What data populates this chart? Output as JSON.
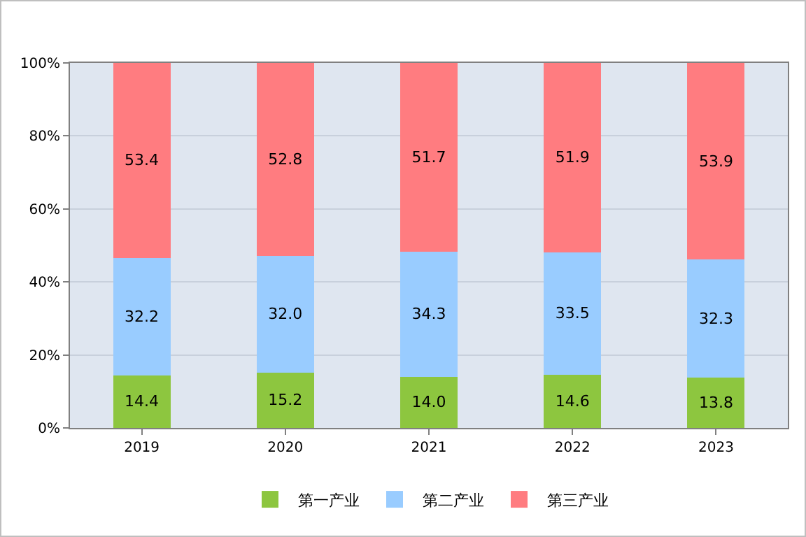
{
  "chart_data": {
    "type": "bar",
    "stacked": true,
    "categories": [
      "2019",
      "2020",
      "2021",
      "2022",
      "2023"
    ],
    "series": [
      {
        "name": "第一产业",
        "color": "#8dc63f",
        "values": [
          14.4,
          15.2,
          14.0,
          14.6,
          13.8
        ],
        "value_labels": [
          "14.4",
          "15.2",
          "14.0",
          "14.6",
          "13.8"
        ]
      },
      {
        "name": "第二产业",
        "color": "#99ccff",
        "values": [
          32.2,
          32.0,
          34.3,
          33.5,
          32.3
        ],
        "value_labels": [
          "32.2",
          "32.0",
          "34.3",
          "33.5",
          "32.3"
        ]
      },
      {
        "name": "第三产业",
        "color": "#ff7c80",
        "values": [
          53.4,
          52.8,
          51.7,
          51.9,
          53.9
        ],
        "value_labels": [
          "53.4",
          "52.8",
          "51.7",
          "51.9",
          "53.9"
        ]
      }
    ],
    "ylim": [
      0,
      100
    ],
    "yticks": [
      {
        "value": 0,
        "label": "0%"
      },
      {
        "value": 20,
        "label": "20%"
      },
      {
        "value": 40,
        "label": "40%"
      },
      {
        "value": 60,
        "label": "60%"
      },
      {
        "value": 80,
        "label": "80%"
      },
      {
        "value": 100,
        "label": "100%"
      }
    ],
    "grid": "y",
    "legend": "bottom"
  }
}
